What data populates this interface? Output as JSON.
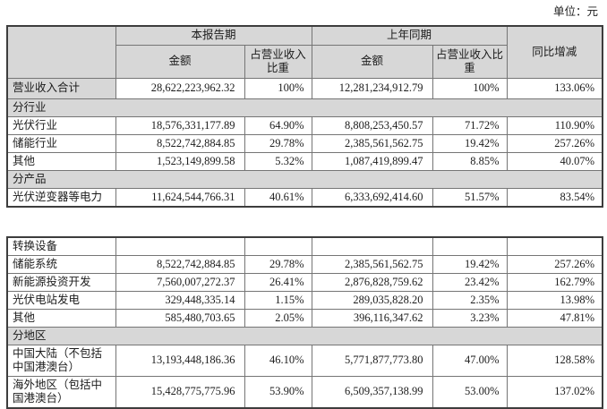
{
  "unit_label": "单位：元",
  "colors": {
    "header_fill": "#d7d7d7",
    "inner_border": "#757575",
    "outer_border": "#3d3d3d",
    "text": "#1c1c1c",
    "background": "#ffffff"
  },
  "header": {
    "current_period": "本报告期",
    "prior_period": "上年同期",
    "amount": "金额",
    "share": "占营业收入比重",
    "yoy_change": "同比增减"
  },
  "table1_rows": [
    {
      "type": "data",
      "label": "营业收入合计",
      "label_gray": true,
      "current_amount": "28,622,223,962.32",
      "current_share": "100%",
      "prior_amount": "12,281,234,912.79",
      "prior_share": "100%",
      "yoy": "133.06%"
    },
    {
      "type": "section",
      "label": "分行业"
    },
    {
      "type": "data",
      "label": "光伏行业",
      "current_amount": "18,576,331,177.89",
      "current_share": "64.90%",
      "prior_amount": "8,808,253,450.57",
      "prior_share": "71.72%",
      "yoy": "110.90%"
    },
    {
      "type": "data",
      "label": "储能行业",
      "current_amount": "8,522,742,884.85",
      "current_share": "29.78%",
      "prior_amount": "2,385,561,562.75",
      "prior_share": "19.42%",
      "yoy": "257.26%"
    },
    {
      "type": "data",
      "label": "其他",
      "current_amount": "1,523,149,899.58",
      "current_share": "5.32%",
      "prior_amount": "1,087,419,899.47",
      "prior_share": "8.85%",
      "yoy": "40.07%"
    },
    {
      "type": "section",
      "label": "分产品"
    },
    {
      "type": "data",
      "label": "光伏逆变器等电力",
      "current_amount": "11,624,544,766.31",
      "current_share": "40.61%",
      "prior_amount": "6,333,692,414.60",
      "prior_share": "51.57%",
      "yoy": "83.54%"
    }
  ],
  "table2_rows": [
    {
      "type": "data",
      "label": "转换设备",
      "current_amount": "",
      "current_share": "",
      "prior_amount": "",
      "prior_share": "",
      "yoy": ""
    },
    {
      "type": "data",
      "label": "储能系统",
      "current_amount": "8,522,742,884.85",
      "current_share": "29.78%",
      "prior_amount": "2,385,561,562.75",
      "prior_share": "19.42%",
      "yoy": "257.26%"
    },
    {
      "type": "data",
      "label": "新能源投资开发",
      "current_amount": "7,560,007,272.37",
      "current_share": "26.41%",
      "prior_amount": "2,876,828,759.62",
      "prior_share": "23.42%",
      "yoy": "162.79%"
    },
    {
      "type": "data",
      "label": "光伏电站发电",
      "current_amount": "329,448,335.14",
      "current_share": "1.15%",
      "prior_amount": "289,035,828.20",
      "prior_share": "2.35%",
      "yoy": "13.98%"
    },
    {
      "type": "data",
      "label": "其他",
      "current_amount": "585,480,703.65",
      "current_share": "2.05%",
      "prior_amount": "396,116,347.62",
      "prior_share": "3.23%",
      "yoy": "47.81%"
    },
    {
      "type": "section",
      "label": "分地区"
    },
    {
      "type": "data",
      "label": "中国大陆（不包括中国港澳台）",
      "current_amount": "13,193,448,186.36",
      "current_share": "46.10%",
      "prior_amount": "5,771,877,773.80",
      "prior_share": "47.00%",
      "yoy": "128.58%"
    },
    {
      "type": "data",
      "label": "海外地区（包括中国港澳台）",
      "current_amount": "15,428,775,775.96",
      "current_share": "53.90%",
      "prior_amount": "6,509,357,138.99",
      "prior_share": "53.00%",
      "yoy": "137.02%"
    }
  ]
}
